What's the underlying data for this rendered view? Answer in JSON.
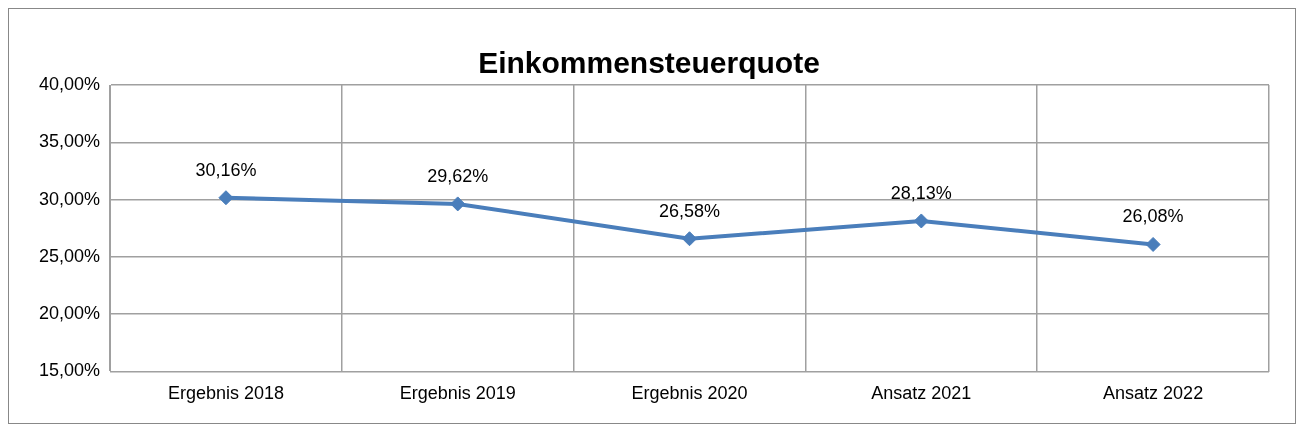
{
  "chart_data": {
    "type": "line",
    "title": "Einkommensteuerquote",
    "categories": [
      "Ergebnis 2018",
      "Ergebnis 2019",
      "Ergebnis 2020",
      "Ansatz 2021",
      "Ansatz 2022"
    ],
    "series": [
      {
        "color": "#4a7ebb",
        "values": [
          30.16,
          29.62,
          26.58,
          28.13,
          26.08
        ],
        "value_labels": [
          "30,16%",
          "29,62%",
          "26,58%",
          "28,13%",
          "26,08%"
        ]
      }
    ],
    "ylim": [
      15,
      40
    ],
    "yticks": [
      {
        "value": 15,
        "label": "15,00%"
      },
      {
        "value": 20,
        "label": "20,00%"
      },
      {
        "value": 25,
        "label": "25,00%"
      },
      {
        "value": 30,
        "label": "30,00%"
      },
      {
        "value": 35,
        "label": "35,00%"
      },
      {
        "value": 40,
        "label": "40,00%"
      }
    ],
    "grid": true,
    "legend": false,
    "marker": "diamond",
    "line_style": "solid"
  }
}
